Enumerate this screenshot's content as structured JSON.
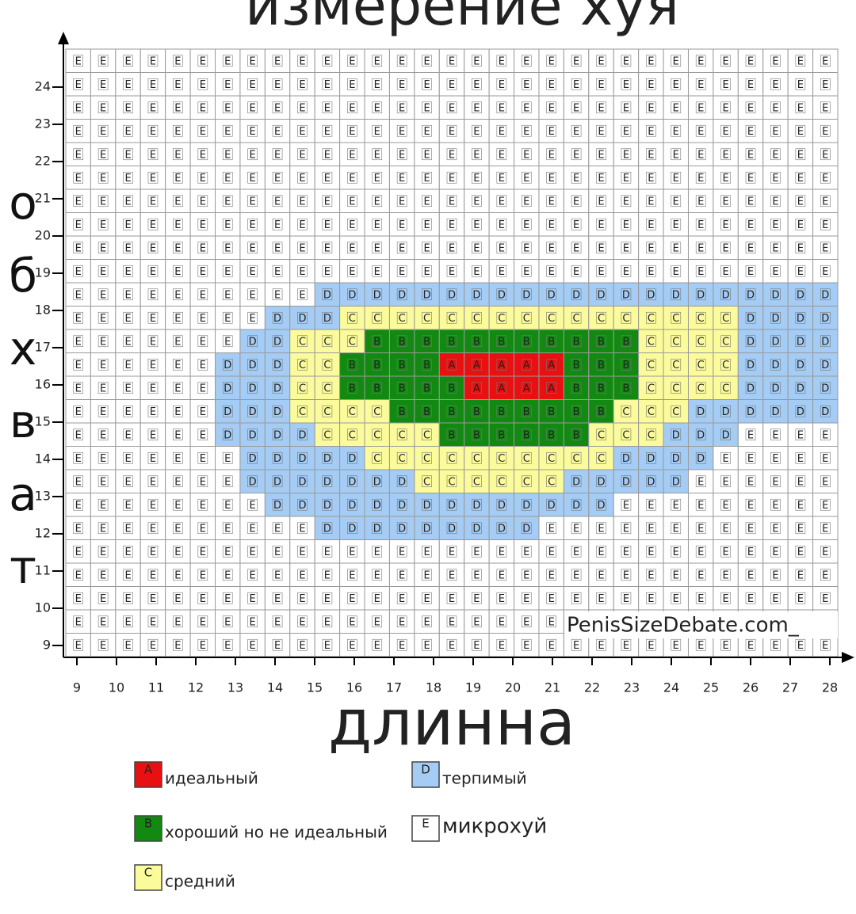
{
  "chart_data": {
    "type": "letter-grid",
    "title": "измерение хуя",
    "x_label": "длинна",
    "y_label": "обхват",
    "xlim": [
      8.66,
      28.2
    ],
    "xticks": [
      9,
      10,
      11,
      12,
      13,
      14,
      15,
      16,
      17,
      18,
      19,
      20,
      21,
      22,
      23,
      24,
      25,
      26,
      27,
      28
    ],
    "ylim": [
      8.68,
      25.02
    ],
    "yticks": [
      9,
      10,
      11,
      12,
      13,
      14,
      15,
      16,
      17,
      18,
      19,
      20,
      21,
      22,
      23,
      24
    ],
    "watermark": "PenisSizeDebate.com_",
    "legend": [
      {
        "letter": "A",
        "label": "идеальный",
        "color": "#e81010"
      },
      {
        "letter": "B",
        "label": "хороший но не идеальный",
        "color": "#128a12"
      },
      {
        "letter": "C",
        "label": "средний",
        "color": "#fbfb9c"
      },
      {
        "letter": "D",
        "label": "терпимый",
        "color": "#a4ccf4"
      },
      {
        "letter": "E",
        "label": "микрохуй",
        "color": "#ffffff"
      }
    ],
    "grid": [
      [
        "E",
        "E",
        "E",
        "E",
        "E",
        "E",
        "E",
        "E",
        "E",
        "E",
        "E",
        "E",
        "E",
        "E",
        "E",
        "E",
        "E",
        "E",
        "E",
        "E",
        "E",
        "E",
        "E",
        "E",
        "E",
        "E",
        "E",
        "E",
        "E",
        "E",
        "E"
      ],
      [
        "E",
        "E",
        "E",
        "E",
        "E",
        "E",
        "E",
        "E",
        "E",
        "E",
        "E",
        "E",
        "E",
        "E",
        "E",
        "E",
        "E",
        "E",
        "E",
        "E",
        "E",
        "E",
        "E",
        "E",
        "E",
        "E",
        "E",
        "E",
        "E",
        "E",
        "E"
      ],
      [
        "E",
        "E",
        "E",
        "E",
        "E",
        "E",
        "E",
        "E",
        "E",
        "E",
        "E",
        "E",
        "E",
        "E",
        "E",
        "E",
        "E",
        "E",
        "E",
        "E",
        "E",
        "E",
        "E",
        "E",
        "E",
        "E",
        "E",
        "E",
        "E",
        "E",
        "E"
      ],
      [
        "E",
        "E",
        "E",
        "E",
        "E",
        "E",
        "E",
        "E",
        "E",
        "E",
        "E",
        "E",
        "E",
        "E",
        "E",
        "E",
        "E",
        "E",
        "E",
        "E",
        "E",
        "E",
        "E",
        "E",
        "E",
        "E",
        "E",
        "E",
        "E",
        "E",
        "E"
      ],
      [
        "E",
        "E",
        "E",
        "E",
        "E",
        "E",
        "E",
        "E",
        "E",
        "E",
        "E",
        "E",
        "E",
        "E",
        "E",
        "E",
        "E",
        "E",
        "E",
        "E",
        "E",
        "E",
        "E",
        "E",
        "E",
        "E",
        "E",
        "E",
        "E",
        "E",
        "E"
      ],
      [
        "E",
        "E",
        "E",
        "E",
        "E",
        "E",
        "E",
        "E",
        "E",
        "E",
        "E",
        "E",
        "E",
        "E",
        "E",
        "E",
        "E",
        "E",
        "E",
        "E",
        "E",
        "E",
        "E",
        "E",
        "E",
        "E",
        "E",
        "E",
        "E",
        "E",
        "E"
      ],
      [
        "E",
        "E",
        "E",
        "E",
        "E",
        "E",
        "E",
        "E",
        "E",
        "E",
        "E",
        "E",
        "E",
        "E",
        "E",
        "E",
        "E",
        "E",
        "E",
        "E",
        "E",
        "E",
        "E",
        "E",
        "E",
        "E",
        "E",
        "E",
        "E",
        "E",
        "E"
      ],
      [
        "E",
        "E",
        "E",
        "E",
        "E",
        "E",
        "E",
        "E",
        "E",
        "E",
        "E",
        "E",
        "E",
        "E",
        "E",
        "E",
        "E",
        "E",
        "E",
        "E",
        "E",
        "E",
        "E",
        "E",
        "E",
        "E",
        "E",
        "E",
        "E",
        "E",
        "E"
      ],
      [
        "E",
        "E",
        "E",
        "E",
        "E",
        "E",
        "E",
        "E",
        "E",
        "E",
        "E",
        "E",
        "E",
        "E",
        "E",
        "E",
        "E",
        "E",
        "E",
        "E",
        "E",
        "E",
        "E",
        "E",
        "E",
        "E",
        "E",
        "E",
        "E",
        "E",
        "E"
      ],
      [
        "E",
        "E",
        "E",
        "E",
        "E",
        "E",
        "E",
        "E",
        "E",
        "E",
        "E",
        "E",
        "E",
        "E",
        "E",
        "E",
        "E",
        "E",
        "E",
        "E",
        "E",
        "E",
        "E",
        "E",
        "E",
        "E",
        "E",
        "E",
        "E",
        "E",
        "E"
      ],
      [
        "E",
        "E",
        "E",
        "E",
        "E",
        "E",
        "E",
        "E",
        "E",
        "E",
        "D",
        "D",
        "D",
        "D",
        "D",
        "D",
        "D",
        "D",
        "D",
        "D",
        "D",
        "D",
        "D",
        "D",
        "D",
        "D",
        "D",
        "D",
        "D",
        "D",
        "D"
      ],
      [
        "E",
        "E",
        "E",
        "E",
        "E",
        "E",
        "E",
        "E",
        "D",
        "D",
        "D",
        "C",
        "C",
        "C",
        "C",
        "C",
        "C",
        "C",
        "C",
        "C",
        "C",
        "C",
        "C",
        "C",
        "C",
        "C",
        "C",
        "D",
        "D",
        "D",
        "D"
      ],
      [
        "E",
        "E",
        "E",
        "E",
        "E",
        "E",
        "E",
        "D",
        "D",
        "C",
        "C",
        "C",
        "B",
        "B",
        "B",
        "B",
        "B",
        "B",
        "B",
        "B",
        "B",
        "B",
        "B",
        "C",
        "C",
        "C",
        "C",
        "D",
        "D",
        "D",
        "D"
      ],
      [
        "E",
        "E",
        "E",
        "E",
        "E",
        "E",
        "D",
        "D",
        "D",
        "C",
        "C",
        "B",
        "B",
        "B",
        "B",
        "A",
        "A",
        "A",
        "A",
        "A",
        "B",
        "B",
        "B",
        "C",
        "C",
        "C",
        "C",
        "D",
        "D",
        "D",
        "D"
      ],
      [
        "E",
        "E",
        "E",
        "E",
        "E",
        "E",
        "D",
        "D",
        "D",
        "C",
        "C",
        "B",
        "B",
        "B",
        "B",
        "B",
        "A",
        "A",
        "A",
        "A",
        "B",
        "B",
        "B",
        "C",
        "C",
        "C",
        "C",
        "D",
        "D",
        "D",
        "D"
      ],
      [
        "E",
        "E",
        "E",
        "E",
        "E",
        "E",
        "D",
        "D",
        "D",
        "C",
        "C",
        "C",
        "C",
        "B",
        "B",
        "B",
        "B",
        "B",
        "B",
        "B",
        "B",
        "B",
        "C",
        "C",
        "C",
        "D",
        "D",
        "D",
        "D",
        "D",
        "D"
      ],
      [
        "E",
        "E",
        "E",
        "E",
        "E",
        "E",
        "D",
        "D",
        "D",
        "D",
        "C",
        "C",
        "C",
        "C",
        "C",
        "B",
        "B",
        "B",
        "B",
        "B",
        "B",
        "C",
        "C",
        "C",
        "D",
        "D",
        "D",
        "E",
        "E",
        "E",
        "E"
      ],
      [
        "E",
        "E",
        "E",
        "E",
        "E",
        "E",
        "E",
        "D",
        "D",
        "D",
        "D",
        "D",
        "C",
        "C",
        "C",
        "C",
        "C",
        "C",
        "C",
        "C",
        "C",
        "C",
        "D",
        "D",
        "D",
        "D",
        "E",
        "E",
        "E",
        "E",
        "E"
      ],
      [
        "E",
        "E",
        "E",
        "E",
        "E",
        "E",
        "E",
        "D",
        "D",
        "D",
        "D",
        "D",
        "D",
        "D",
        "C",
        "C",
        "C",
        "C",
        "C",
        "C",
        "D",
        "D",
        "D",
        "D",
        "D",
        "E",
        "E",
        "E",
        "E",
        "E",
        "E"
      ],
      [
        "E",
        "E",
        "E",
        "E",
        "E",
        "E",
        "E",
        "E",
        "D",
        "D",
        "D",
        "D",
        "D",
        "D",
        "D",
        "D",
        "D",
        "D",
        "D",
        "D",
        "D",
        "D",
        "E",
        "E",
        "E",
        "E",
        "E",
        "E",
        "E",
        "E",
        "E"
      ],
      [
        "E",
        "E",
        "E",
        "E",
        "E",
        "E",
        "E",
        "E",
        "E",
        "E",
        "D",
        "D",
        "D",
        "D",
        "D",
        "D",
        "D",
        "D",
        "D",
        "E",
        "E",
        "E",
        "E",
        "E",
        "E",
        "E",
        "E",
        "E",
        "E",
        "E",
        "E"
      ],
      [
        "E",
        "E",
        "E",
        "E",
        "E",
        "E",
        "E",
        "E",
        "E",
        "E",
        "E",
        "E",
        "E",
        "E",
        "E",
        "E",
        "E",
        "E",
        "E",
        "E",
        "E",
        "E",
        "E",
        "E",
        "E",
        "E",
        "E",
        "E",
        "E",
        "E",
        "E"
      ],
      [
        "E",
        "E",
        "E",
        "E",
        "E",
        "E",
        "E",
        "E",
        "E",
        "E",
        "E",
        "E",
        "E",
        "E",
        "E",
        "E",
        "E",
        "E",
        "E",
        "E",
        "E",
        "E",
        "E",
        "E",
        "E",
        "E",
        "E",
        "E",
        "E",
        "E",
        "E"
      ],
      [
        "E",
        "E",
        "E",
        "E",
        "E",
        "E",
        "E",
        "E",
        "E",
        "E",
        "E",
        "E",
        "E",
        "E",
        "E",
        "E",
        "E",
        "E",
        "E",
        "E",
        "E",
        "E",
        "E",
        "E",
        "E",
        "E",
        "E",
        "E",
        "E",
        "E",
        "E"
      ],
      [
        "E",
        "E",
        "E",
        "E",
        "E",
        "E",
        "E",
        "E",
        "E",
        "E",
        "E",
        "E",
        "E",
        "E",
        "E",
        "E",
        "E",
        "E",
        "E",
        "E",
        "E",
        "E",
        "E",
        "E",
        "E",
        "E",
        "E",
        "E",
        "E",
        "E",
        "E"
      ],
      [
        "E",
        "E",
        "E",
        "E",
        "E",
        "E",
        "E",
        "E",
        "E",
        "E",
        "E",
        "E",
        "E",
        "E",
        "E",
        "E",
        "E",
        "E",
        "E",
        "E",
        "E",
        "E",
        "E",
        "E",
        "E",
        "E",
        "E",
        "E",
        "E",
        "E",
        "E"
      ]
    ]
  }
}
